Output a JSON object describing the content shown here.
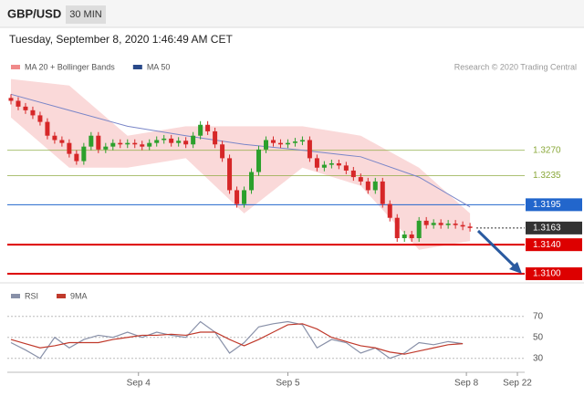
{
  "header": {
    "symbol": "GBP/USD",
    "interval": "30 MIN",
    "timestamp": "Tuesday, September 8, 2020 1:46:49 AM CET"
  },
  "chart_data": [
    {
      "type": "candlestick",
      "legend": [
        {
          "name": "MA 20 + Bollinger Bands",
          "color": "#f08a8a"
        },
        {
          "name": "MA 50",
          "color": "#2a4a8a"
        }
      ],
      "credit": "Research © 2020 Trading Central",
      "up_color": "#2ca02c",
      "down_color": "#d62728",
      "xlim": [
        -0.5,
        70.5
      ],
      "ylim": [
        1.309,
        1.337
      ],
      "open": [
        1.3342,
        1.3338,
        1.333,
        1.3325,
        1.3318,
        1.3309,
        1.329,
        1.3284,
        1.328,
        1.3265,
        1.3255,
        1.3275,
        1.329,
        1.3271,
        1.3275,
        1.328,
        1.3278,
        1.328,
        1.3278,
        1.3275,
        1.328,
        1.3284,
        1.3286,
        1.328,
        1.3283,
        1.3278,
        1.329,
        1.3305,
        1.3296,
        1.3278,
        1.3259,
        1.3215,
        1.3196,
        1.3215,
        1.324,
        1.3271,
        1.3284,
        1.328,
        1.3278,
        1.328,
        1.3282,
        1.3284,
        1.3259,
        1.3246,
        1.325,
        1.3252,
        1.3249,
        1.3242,
        1.3233,
        1.3227,
        1.3215,
        1.3227,
        1.3196,
        1.3177,
        1.3149,
        1.3154,
        1.3149,
        1.3173,
        1.3167,
        1.317,
        1.3167,
        1.3169,
        1.3167,
        1.3165
      ],
      "high": [
        1.3347,
        1.3343,
        1.3335,
        1.333,
        1.3323,
        1.3314,
        1.3295,
        1.3289,
        1.3285,
        1.327,
        1.328,
        1.3295,
        1.3295,
        1.328,
        1.3285,
        1.3285,
        1.3285,
        1.3285,
        1.3283,
        1.3285,
        1.3289,
        1.3291,
        1.3291,
        1.3288,
        1.3288,
        1.3295,
        1.331,
        1.331,
        1.3301,
        1.3283,
        1.3264,
        1.322,
        1.322,
        1.3245,
        1.3276,
        1.3289,
        1.3289,
        1.3285,
        1.3285,
        1.3287,
        1.3289,
        1.3289,
        1.3264,
        1.3255,
        1.3257,
        1.3257,
        1.3254,
        1.3247,
        1.3238,
        1.3232,
        1.3232,
        1.3232,
        1.3201,
        1.3182,
        1.3159,
        1.3159,
        1.3178,
        1.3178,
        1.3175,
        1.3175,
        1.3174,
        1.3174,
        1.3172,
        1.317
      ],
      "low": [
        1.3333,
        1.3325,
        1.332,
        1.3313,
        1.3304,
        1.3285,
        1.3279,
        1.3275,
        1.326,
        1.325,
        1.325,
        1.327,
        1.3266,
        1.3266,
        1.327,
        1.3273,
        1.3273,
        1.3273,
        1.327,
        1.327,
        1.3275,
        1.3279,
        1.3275,
        1.3275,
        1.3273,
        1.3273,
        1.3285,
        1.3291,
        1.3273,
        1.3254,
        1.321,
        1.3191,
        1.3191,
        1.321,
        1.3235,
        1.3266,
        1.3275,
        1.3273,
        1.3273,
        1.3275,
        1.3277,
        1.3254,
        1.3241,
        1.3241,
        1.3245,
        1.3244,
        1.3237,
        1.3228,
        1.3222,
        1.321,
        1.321,
        1.3191,
        1.3172,
        1.3144,
        1.3144,
        1.3144,
        1.3144,
        1.3162,
        1.3162,
        1.3162,
        1.3162,
        1.3162,
        1.316,
        1.3158
      ],
      "close": [
        1.3338,
        1.333,
        1.3325,
        1.3318,
        1.3309,
        1.329,
        1.3284,
        1.328,
        1.3265,
        1.3255,
        1.3275,
        1.329,
        1.3271,
        1.3275,
        1.328,
        1.3278,
        1.328,
        1.3278,
        1.3275,
        1.328,
        1.3284,
        1.3286,
        1.328,
        1.3283,
        1.3278,
        1.329,
        1.3305,
        1.3296,
        1.3278,
        1.3259,
        1.3215,
        1.3196,
        1.3215,
        1.324,
        1.3271,
        1.3284,
        1.328,
        1.3278,
        1.328,
        1.3282,
        1.3284,
        1.3259,
        1.3246,
        1.325,
        1.3252,
        1.3249,
        1.3242,
        1.3233,
        1.3227,
        1.3215,
        1.3227,
        1.3196,
        1.3177,
        1.3149,
        1.3154,
        1.3149,
        1.3173,
        1.3167,
        1.317,
        1.3167,
        1.3169,
        1.3167,
        1.3165,
        1.3163
      ],
      "bands": {
        "x": [
          0,
          8,
          16,
          24,
          32,
          40,
          48,
          56,
          63
        ],
        "upper": [
          1.3368,
          1.3359,
          1.329,
          1.3303,
          1.3303,
          1.3303,
          1.329,
          1.3246,
          1.3183
        ],
        "lower": [
          1.3315,
          1.3246,
          1.3246,
          1.3259,
          1.3183,
          1.3246,
          1.3221,
          1.3133,
          1.3145
        ],
        "color": "#f9cfcf"
      },
      "series": [
        {
          "x": [
            0,
            8,
            16,
            24,
            32,
            40,
            48,
            56,
            63
          ],
          "values": [
            1.3347,
            1.3325,
            1.3303,
            1.329,
            1.3278,
            1.327,
            1.3261,
            1.3233,
            1.3192
          ],
          "color": "#7a86c8"
        }
      ],
      "levels": [
        {
          "value": 1.327,
          "label": "1.3270",
          "color": "#8aa83a",
          "box": false
        },
        {
          "value": 1.3235,
          "label": "1.3235",
          "color": "#8aa83a",
          "box": false
        },
        {
          "value": 1.3195,
          "label": "1.3195",
          "color": "#2266cc",
          "box": true
        },
        {
          "value": 1.3163,
          "label": "1.3163",
          "color": "#333333",
          "box": true,
          "dotted": true
        },
        {
          "value": 1.314,
          "label": "1.3140",
          "color": "#dd0000",
          "box": true
        },
        {
          "value": 1.31,
          "label": "1.3100",
          "color": "#dd0000",
          "box": true
        }
      ]
    },
    {
      "type": "line",
      "xlim": [
        -0.5,
        70.5
      ],
      "ylim": [
        15,
        95
      ],
      "yticks": [
        30,
        50,
        70
      ],
      "xticks": [
        {
          "value": 17.5,
          "label": "Sep 4"
        },
        {
          "value": 38,
          "label": "Sep 5"
        },
        {
          "value": 62.5,
          "label": "Sep 8"
        },
        {
          "value": 69.5,
          "label": "Sep 22"
        }
      ],
      "x": [
        0,
        2,
        4,
        6,
        8,
        10,
        12,
        14,
        16,
        18,
        20,
        22,
        24,
        26,
        28,
        30,
        32,
        34,
        36,
        38,
        40,
        42,
        44,
        46,
        48,
        50,
        52,
        54,
        56,
        58,
        60,
        62
      ],
      "series": [
        {
          "name": "RSI",
          "color": "#8890a8",
          "values": [
            45,
            38,
            30,
            50,
            40,
            48,
            52,
            50,
            55,
            50,
            55,
            52,
            50,
            65,
            55,
            35,
            45,
            60,
            63,
            65,
            62,
            40,
            48,
            45,
            35,
            40,
            30,
            35,
            45,
            43,
            46,
            44
          ]
        },
        {
          "name": "9MA",
          "color": "#c0392b",
          "values": [
            48,
            44,
            40,
            42,
            45,
            45,
            45,
            48,
            50,
            52,
            52,
            53,
            52,
            55,
            55,
            48,
            42,
            48,
            55,
            62,
            63,
            58,
            50,
            46,
            42,
            40,
            36,
            34,
            37,
            40,
            43,
            44
          ]
        }
      ]
    }
  ]
}
